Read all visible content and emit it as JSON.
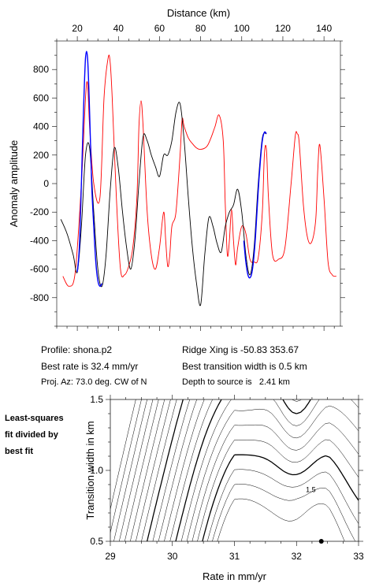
{
  "info": {
    "profile": "Profile: shona.p2",
    "ridge": "Ridge Xing is -50.83 353.67",
    "best_rate": "Best rate is 32.4 mm/yr",
    "best_width": "Best transition width is 0.5 km",
    "proj": "Proj. Az: 73.0 deg. CW of N",
    "depth": "Depth to source is   2.41 km"
  },
  "side_label": [
    "Least-squares",
    "fit divided by",
    "best fit"
  ],
  "chart_data": [
    {
      "type": "line",
      "xlabel": "Distance (km)",
      "ylabel": "Anomaly amplitude",
      "xlim": [
        10,
        148
      ],
      "ylim": [
        -1000,
        1000
      ],
      "x_ticks": [
        20,
        40,
        60,
        80,
        100,
        120,
        140
      ],
      "y_ticks": [
        800,
        600,
        400,
        200,
        0,
        -200,
        -400,
        -600,
        -800
      ],
      "colors": {
        "observed": "#000000",
        "model": "#ff0000",
        "fit_window": "#0000ff"
      },
      "series": [
        {
          "role": "model",
          "color": "#ff0000",
          "x": [
            13,
            16,
            19,
            22,
            24,
            25,
            26,
            28,
            31,
            33,
            35,
            36,
            37,
            39,
            41,
            43,
            45,
            47,
            49,
            50,
            51,
            52,
            54,
            56,
            58,
            60,
            62,
            63,
            64,
            65,
            66,
            68,
            70,
            71,
            72,
            74,
            76,
            78,
            80,
            83,
            85,
            87,
            89,
            91,
            92,
            93,
            94,
            95,
            96,
            97,
            98,
            100,
            102,
            104,
            106,
            108,
            110,
            111,
            112,
            113,
            115,
            118,
            121,
            124,
            126,
            127,
            128,
            130,
            132,
            134,
            136,
            137,
            138,
            140,
            142,
            144,
            146
          ],
          "y": [
            -650,
            -720,
            -620,
            0,
            600,
            700,
            400,
            0,
            -100,
            600,
            880,
            850,
            600,
            -100,
            -600,
            -640,
            -580,
            -450,
            -100,
            400,
            580,
            400,
            -200,
            -500,
            -600,
            -450,
            -200,
            -400,
            -580,
            -500,
            -300,
            -200,
            200,
            450,
            400,
            320,
            280,
            250,
            240,
            260,
            320,
            400,
            480,
            300,
            -150,
            -500,
            -400,
            -180,
            -400,
            -570,
            -450,
            -300,
            -350,
            -530,
            -550,
            -520,
            -200,
            200,
            240,
            -100,
            -500,
            -530,
            -450,
            0,
            330,
            350,
            280,
            -150,
            -380,
            -410,
            -250,
            100,
            270,
            -100,
            -550,
            -640,
            -650
          ]
        },
        {
          "role": "observed",
          "color": "#000000",
          "x": [
            12,
            15,
            18,
            20,
            22,
            24,
            26,
            28,
            30,
            32,
            34,
            36,
            38,
            40,
            42,
            44,
            46,
            48,
            50,
            52,
            54,
            56,
            58,
            60,
            62,
            64,
            66,
            68,
            70,
            72,
            74,
            76,
            78,
            80,
            82,
            84,
            86,
            88,
            90,
            92,
            94,
            96,
            98,
            100,
            102,
            104,
            106,
            108,
            110,
            112
          ],
          "y": [
            -250,
            -350,
            -500,
            -620,
            -300,
            200,
            250,
            -200,
            -600,
            -720,
            -500,
            -50,
            250,
            100,
            -200,
            -450,
            -600,
            -400,
            0,
            330,
            300,
            200,
            120,
            50,
            200,
            200,
            300,
            500,
            560,
            300,
            -100,
            -450,
            -700,
            -850,
            -500,
            -240,
            -300,
            -420,
            -480,
            -300,
            -200,
            -150,
            -40,
            -200,
            -500,
            -640,
            -450,
            0,
            320,
            350
          ]
        },
        {
          "role": "fit_window",
          "color": "#0000ff",
          "x": [
            20,
            21,
            22,
            23,
            24,
            25,
            26,
            27,
            28,
            29,
            30,
            31,
            32
          ],
          "y": [
            -620,
            -450,
            0,
            500,
            880,
            880,
            500,
            0,
            -300,
            -550,
            -680,
            -720,
            -700
          ]
        },
        {
          "role": "fit_window",
          "color": "#0000ff",
          "x": [
            101,
            102,
            103,
            104,
            105,
            106,
            107,
            108,
            109,
            110,
            111,
            112
          ],
          "y": [
            -400,
            -550,
            -640,
            -660,
            -620,
            -500,
            -300,
            -50,
            150,
            300,
            360,
            350
          ]
        }
      ]
    },
    {
      "type": "contour",
      "xlabel": "Rate in mm/yr",
      "ylabel": "Transition width in km",
      "xlim": [
        29,
        33
      ],
      "ylim": [
        0.5,
        1.5
      ],
      "x_ticks": [
        29,
        30,
        31,
        32,
        33
      ],
      "y_ticks": [
        0.5,
        1.0,
        1.5
      ],
      "contour_labels": [
        {
          "text": "1.5",
          "x": 32.1,
          "y": 0.87
        }
      ],
      "best_fit": {
        "x": 32.4,
        "y": 0.5
      }
    }
  ]
}
